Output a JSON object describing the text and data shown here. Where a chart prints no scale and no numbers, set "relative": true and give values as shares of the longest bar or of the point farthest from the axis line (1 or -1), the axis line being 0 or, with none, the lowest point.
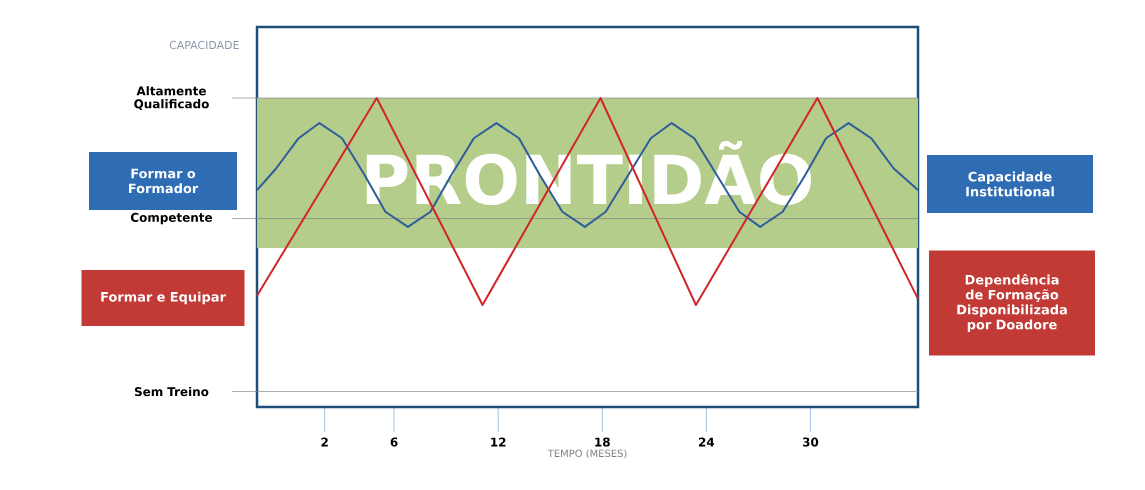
{
  "chart_data": {
    "type": "line",
    "relative": true,
    "ylabel": "CAPACIDADE",
    "xlabel": "TEMPO (MESES)",
    "xlim": [
      -1.9,
      36.2
    ],
    "xticks": [
      2,
      6,
      12,
      18,
      24,
      30
    ],
    "bands": [
      {
        "axis": "y",
        "from": 0.515,
        "to": 1,
        "label": "PRONTIDÃO",
        "color": "#b5cd8a"
      }
    ],
    "ref_lines": [
      {
        "axis": "y",
        "value": 0.05,
        "label": "Sem Treino"
      },
      {
        "axis": "y",
        "value": 0.61,
        "label": "Competente"
      },
      {
        "axis": "y",
        "value": 1,
        "label": "Altamente Qualificado"
      }
    ],
    "annotations": [
      "Formar o Formador",
      "Formar e Equipar",
      "Capacidade Institutional",
      "Dependência de Formação Disponibilizada por Doadore"
    ],
    "series": [
      {
        "color": "#2f5d9a",
        "x": [
          -1.9,
          -0.8,
          0.5,
          1.7,
          3.0,
          4.3,
          5.5,
          6.8,
          8.1,
          9.3,
          10.6,
          11.9,
          13.2,
          14.4,
          15.7,
          17.0,
          18.2,
          19.5,
          20.8,
          22.0,
          23.3,
          24.6,
          25.9,
          27.1,
          28.4,
          29.7,
          30.9,
          32.2,
          33.5,
          34.8,
          36.2
        ],
        "values": [
          0.702,
          0.772,
          0.87,
          0.919,
          0.87,
          0.751,
          0.632,
          0.583,
          0.632,
          0.751,
          0.87,
          0.919,
          0.87,
          0.751,
          0.632,
          0.583,
          0.632,
          0.751,
          0.87,
          0.919,
          0.87,
          0.751,
          0.632,
          0.583,
          0.632,
          0.751,
          0.87,
          0.919,
          0.87,
          0.772,
          0.702
        ]
      },
      {
        "color": "#d0262b",
        "x": [
          -1.9,
          5.0,
          11.1,
          17.9,
          23.4,
          30.4,
          36.2
        ],
        "values": [
          0.36,
          1,
          0.33,
          1,
          0.33,
          1,
          0.35
        ]
      }
    ]
  }
}
